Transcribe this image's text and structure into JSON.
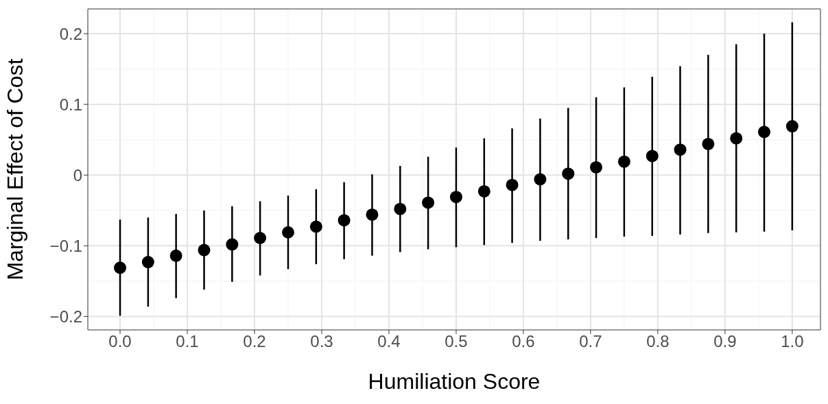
{
  "chart_data": {
    "type": "scatter",
    "xlabel": "Humiliation Score",
    "ylabel": "Marginal Effect of Cost",
    "x": [
      0,
      0.0417,
      0.0833,
      0.125,
      0.1667,
      0.2083,
      0.25,
      0.2917,
      0.3333,
      0.375,
      0.4167,
      0.4583,
      0.5,
      0.5417,
      0.5833,
      0.625,
      0.6667,
      0.7083,
      0.75,
      0.7917,
      0.8333,
      0.875,
      0.9167,
      0.9583,
      1
    ],
    "series": [
      {
        "color": "#000000",
        "values": [
          -0.131,
          -0.123,
          -0.114,
          -0.106,
          -0.098,
          -0.089,
          -0.081,
          -0.073,
          -0.064,
          -0.056,
          -0.048,
          -0.039,
          -0.031,
          -0.023,
          -0.014,
          -0.006,
          0.002,
          0.011,
          0.019,
          0.027,
          0.036,
          0.044,
          0.052,
          0.061,
          0.069
        ],
        "errors": [
          [
            -0.199,
            -0.063
          ],
          [
            -0.186,
            -0.06
          ],
          [
            -0.174,
            -0.055
          ],
          [
            -0.162,
            -0.05
          ],
          [
            -0.151,
            -0.044
          ],
          [
            -0.142,
            -0.037
          ],
          [
            -0.133,
            -0.029
          ],
          [
            -0.126,
            -0.02
          ],
          [
            -0.119,
            -0.01
          ],
          [
            -0.114,
            0.001
          ],
          [
            -0.109,
            0.013
          ],
          [
            -0.105,
            0.026
          ],
          [
            -0.102,
            0.039
          ],
          [
            -0.099,
            0.052
          ],
          [
            -0.096,
            0.066
          ],
          [
            -0.093,
            0.08
          ],
          [
            -0.091,
            0.095
          ],
          [
            -0.089,
            0.11
          ],
          [
            -0.087,
            0.124
          ],
          [
            -0.086,
            0.139
          ],
          [
            -0.084,
            0.154
          ],
          [
            -0.082,
            0.17
          ],
          [
            -0.081,
            0.185
          ],
          [
            -0.08,
            0.2
          ],
          [
            -0.078,
            0.216
          ]
        ]
      }
    ],
    "xlim": [
      -0.048,
      1.042
    ],
    "ylim": [
      -0.219,
      0.235
    ],
    "xticks": [
      {
        "value": 0,
        "label": "0.0"
      },
      {
        "value": 0.1,
        "label": "0.1"
      },
      {
        "value": 0.2,
        "label": "0.2"
      },
      {
        "value": 0.3,
        "label": "0.3"
      },
      {
        "value": 0.4,
        "label": "0.4"
      },
      {
        "value": 0.5,
        "label": "0.5"
      },
      {
        "value": 0.6,
        "label": "0.6"
      },
      {
        "value": 0.7,
        "label": "0.7"
      },
      {
        "value": 0.8,
        "label": "0.8"
      },
      {
        "value": 0.9,
        "label": "0.9"
      },
      {
        "value": 1,
        "label": "1.0"
      }
    ],
    "yticks": [
      {
        "value": -0.2,
        "label": "−0.2"
      },
      {
        "value": -0.1,
        "label": "−0.1"
      },
      0,
      0.1,
      0.2
    ],
    "grid": true,
    "marker": "circle"
  }
}
